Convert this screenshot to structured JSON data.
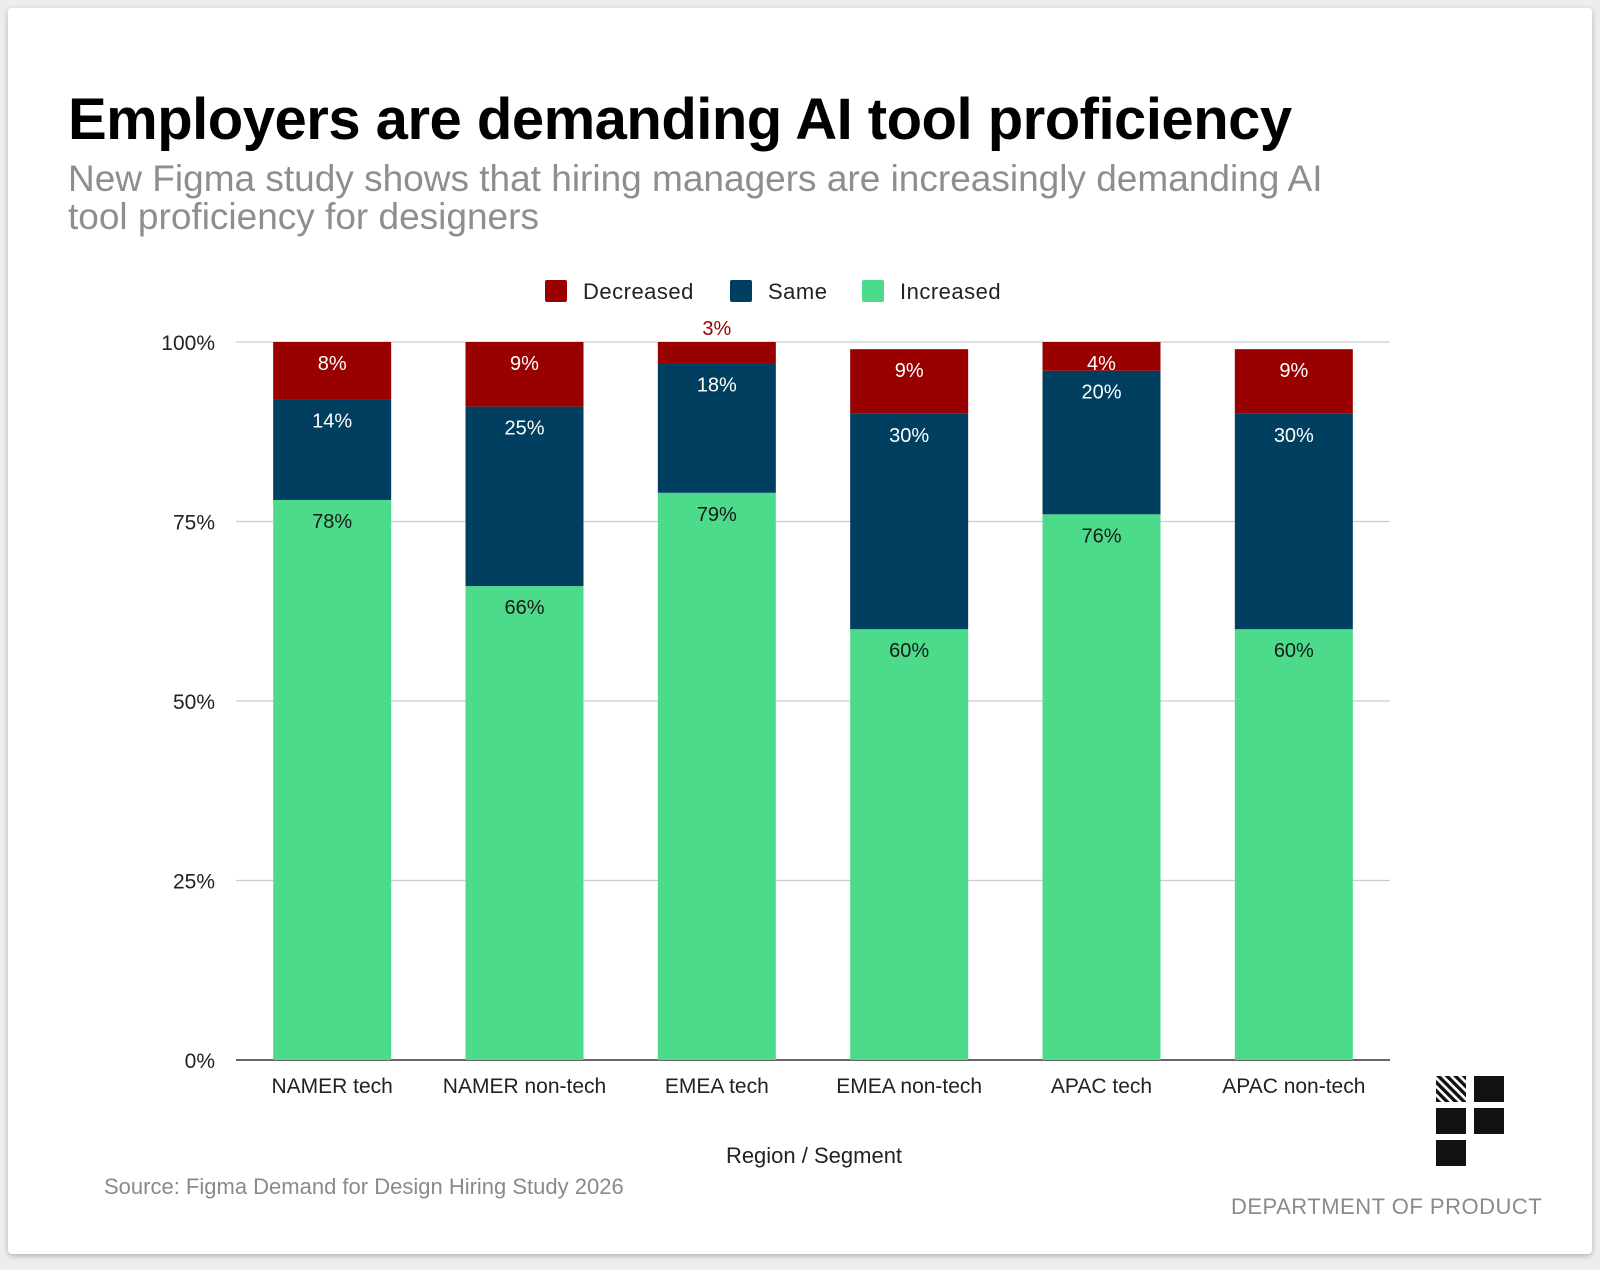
{
  "header": {
    "title": "Employers are demanding AI tool proficiency",
    "subtitle": "New Figma study shows that hiring managers are increasingly demanding AI tool proficiency for designers"
  },
  "footer": {
    "source": "Source: Figma Demand for Design Hiring Study 2026",
    "brand": "DEPARTMENT OF PRODUCT",
    "logo_icon": "department-of-product-logo-icon"
  },
  "colors": {
    "decreased": "#990000",
    "same": "#003f5f",
    "increased": "#4cdb8a",
    "gridline": "#cccccc",
    "baseline": "#333333"
  },
  "chart_data": {
    "type": "bar",
    "stacked": true,
    "title": "Employers are demanding AI tool proficiency",
    "xlabel": "Region / Segment",
    "ylabel": "",
    "ylim": [
      0,
      100
    ],
    "yticks": [
      "0%",
      "25%",
      "50%",
      "75%",
      "100%"
    ],
    "ytick_values": [
      0,
      25,
      50,
      75,
      100
    ],
    "grid": true,
    "legend_position": "top-center",
    "legend": [
      "Decreased",
      "Same",
      "Increased"
    ],
    "categories": [
      "NAMER tech",
      "NAMER non-tech",
      "EMEA tech",
      "EMEA non-tech",
      "APAC tech",
      "APAC non-tech"
    ],
    "series": [
      {
        "name": "Increased",
        "key": "increased",
        "values": [
          78,
          66,
          79,
          60,
          76,
          60
        ]
      },
      {
        "name": "Same",
        "key": "same",
        "values": [
          14,
          25,
          18,
          30,
          20,
          30
        ]
      },
      {
        "name": "Decreased",
        "key": "decreased",
        "values": [
          8,
          9,
          3,
          9,
          4,
          9
        ]
      }
    ],
    "value_suffix": "%"
  }
}
